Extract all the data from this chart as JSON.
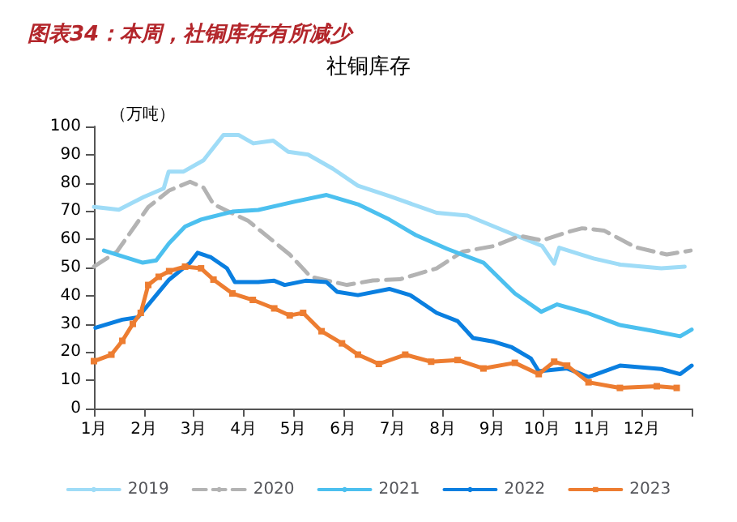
{
  "chart_data": {
    "type": "line",
    "title": "图表34：本周，社铜库存有所减少",
    "subtitle": "社铜库存",
    "ylabel": "（万吨）",
    "xlim": [
      1,
      13
    ],
    "xticks": [
      {
        "value": 1,
        "label": "1月"
      },
      {
        "value": 2,
        "label": "2月"
      },
      {
        "value": 3,
        "label": "3月"
      },
      {
        "value": 4,
        "label": "4月"
      },
      {
        "value": 5,
        "label": "5月"
      },
      {
        "value": 6,
        "label": "6月"
      },
      {
        "value": 7,
        "label": "7月"
      },
      {
        "value": 8,
        "label": "8月"
      },
      {
        "value": 9,
        "label": "9月"
      },
      {
        "value": 10,
        "label": "10月"
      },
      {
        "value": 11,
        "label": "11月"
      },
      {
        "value": 12,
        "label": "12月"
      },
      {
        "value": 13,
        "label": null
      }
    ],
    "ylim": [
      0,
      100
    ],
    "yticks": [
      0,
      10,
      20,
      30,
      40,
      50,
      60,
      70,
      80,
      90,
      100
    ],
    "grid": false,
    "legend": "bottom",
    "marker": "none",
    "series": [
      {
        "name": "2019",
        "color": "#9fdcf7",
        "line_style": "solid",
        "x": [
          1,
          1.5,
          2,
          2.4,
          2.5,
          2.8,
          3.2,
          3.6,
          3.9,
          4.2,
          4.6,
          4.9,
          5.3,
          5.8,
          6.3,
          6.93,
          7.88,
          8.5,
          9.45,
          10,
          10.24,
          10.34,
          11.03,
          11.57,
          12.39,
          12.86
        ],
        "values": [
          71.5,
          70.5,
          75,
          78,
          84,
          84,
          88,
          97,
          97,
          94,
          95,
          91,
          90,
          85,
          79,
          75.3,
          69.4,
          68.4,
          61.5,
          57.6,
          51.4,
          57,
          53.2,
          51,
          49.7,
          50.3
        ]
      },
      {
        "name": "2020",
        "color": "#b3b3b3",
        "line_style": "dashed",
        "x": [
          1,
          1.46,
          2.09,
          2.51,
          2.93,
          3.2,
          3.4,
          4.1,
          4.93,
          5.35,
          6.08,
          6.6,
          7.14,
          7.88,
          8.4,
          9.03,
          9.55,
          10,
          10.5,
          10.8,
          11.24,
          11.87,
          12.5,
          12.98
        ],
        "values": [
          50.3,
          55.6,
          71.4,
          77.3,
          80.4,
          78.3,
          72.4,
          66.5,
          54.6,
          46.7,
          43.8,
          45.4,
          45.8,
          49.7,
          55.6,
          57.6,
          61.2,
          59.6,
          62.5,
          63.9,
          63.1,
          57.2,
          54.6,
          56
        ]
      },
      {
        "name": "2021",
        "color": "#4cc0ef",
        "line_style": "solid",
        "x": [
          1.2,
          1.98,
          2.25,
          2.51,
          2.83,
          3.15,
          3.78,
          4.3,
          5.04,
          5.67,
          6.3,
          6.93,
          7.46,
          8.09,
          8.82,
          9.45,
          9.98,
          10.3,
          10.9,
          11.56,
          12.2,
          12.77,
          13
        ],
        "values": [
          56,
          51.7,
          52.5,
          58.6,
          64.5,
          67,
          69.8,
          70.4,
          73.4,
          75.7,
          72.4,
          67,
          61.5,
          56.6,
          51.7,
          40.8,
          34.3,
          36.9,
          33.9,
          29.6,
          27.6,
          25.6,
          28
        ]
      },
      {
        "name": "2022",
        "color": "#0a7fe0",
        "line_style": "solid",
        "x": [
          1.03,
          1.57,
          1.88,
          2.51,
          2.93,
          3.08,
          3.35,
          3.67,
          3.83,
          4.3,
          4.62,
          4.83,
          5.25,
          5.67,
          5.88,
          6.3,
          6.93,
          7.35,
          7.88,
          8.3,
          8.61,
          9.03,
          9.39,
          9.77,
          9.93,
          10.5,
          10.93,
          11.56,
          12.39,
          12.77,
          13
        ],
        "values": [
          28.6,
          31.5,
          32.3,
          45.7,
          51.7,
          55.2,
          53.6,
          49.7,
          44.8,
          44.8,
          45.3,
          43.8,
          45.3,
          44.8,
          41.4,
          40.2,
          42.4,
          40.2,
          33.9,
          31,
          25,
          23.7,
          21.7,
          17.8,
          13.2,
          14.2,
          11.2,
          15.2,
          14,
          12.2,
          15.2
        ]
      },
      {
        "name": "2023",
        "color": "#ed7d31",
        "line_style": "solid",
        "marker": "square",
        "x": [
          1,
          1.35,
          1.57,
          1.78,
          1.94,
          2.09,
          2.3,
          2.51,
          2.83,
          3.15,
          3.4,
          3.78,
          4.19,
          4.62,
          4.93,
          5.2,
          5.57,
          5.98,
          6.3,
          6.72,
          7.25,
          7.77,
          8.3,
          8.82,
          9.45,
          9.93,
          10.24,
          10.5,
          10.93,
          11.56,
          12.3,
          12.7
        ],
        "values": [
          16.8,
          19.1,
          24,
          30,
          33.9,
          43.8,
          46.7,
          48.7,
          50.3,
          49.7,
          45.7,
          40.8,
          38.5,
          35.5,
          33,
          33.9,
          27.4,
          23.1,
          19.1,
          15.8,
          19.1,
          16.6,
          17.2,
          14.2,
          16.2,
          12.2,
          16.6,
          15.2,
          9.3,
          7.3,
          7.9,
          7.3
        ]
      }
    ]
  }
}
